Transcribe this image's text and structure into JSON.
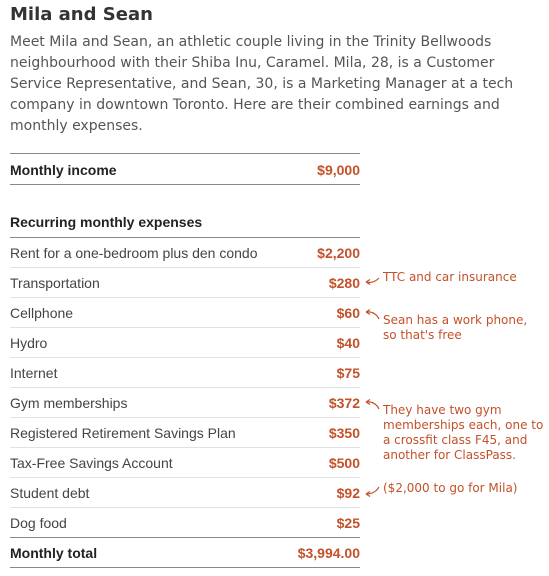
{
  "header": {
    "title": "Mila and Sean",
    "intro": "Meet Mila and Sean, an athletic couple living in the Trinity Bellwoods neighbourhood with their Shiba Inu, Caramel. Mila, 28, is a Customer Service Representative, and Sean, 30, is a Marketing Manager at a tech company in downtown Toronto. Here are their combined earnings and monthly expenses."
  },
  "income": {
    "label": "Monthly income",
    "amount": "$9,000"
  },
  "expenses": {
    "heading": "Recurring monthly expenses",
    "items": [
      {
        "label": "Rent for a one-bedroom plus den condo",
        "amount": "$2,200"
      },
      {
        "label": "Transportation",
        "amount": "$280"
      },
      {
        "label": "Cellphone",
        "amount": "$60"
      },
      {
        "label": "Hydro",
        "amount": "$40"
      },
      {
        "label": "Internet",
        "amount": "$75"
      },
      {
        "label": "Gym memberships",
        "amount": "$372"
      },
      {
        "label": "Registered Retirement Savings Plan",
        "amount": "$350"
      },
      {
        "label": "Tax-Free Savings Account",
        "amount": "$500"
      },
      {
        "label": "Student debt",
        "amount": "$92"
      },
      {
        "label": "Dog food",
        "amount": "$25"
      }
    ],
    "total": {
      "label": "Monthly total",
      "amount": "$3,994.00"
    }
  },
  "annotations": {
    "transportation": "TTC and car insurance",
    "cellphone": "Sean has a work phone, so that's free",
    "gym": "They have two gym memberships each, one to a crossfit class F45, and another for ClassPass.",
    "student_debt": "($2,000 to go for Mila)"
  },
  "colors": {
    "accent": "#c3512a",
    "text": "#444444",
    "intro": "#555555"
  }
}
